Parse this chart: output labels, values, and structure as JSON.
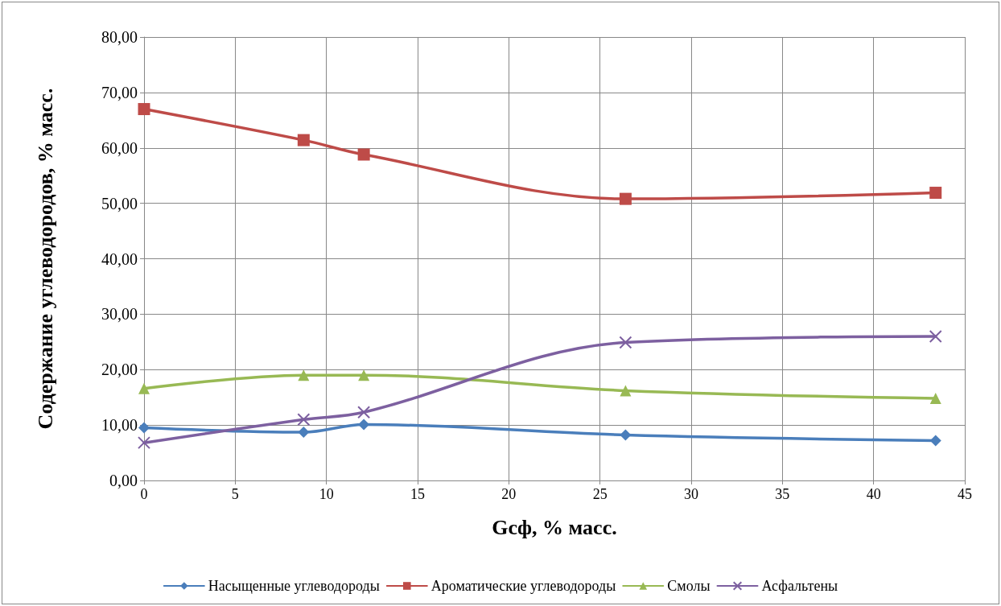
{
  "chart_data": {
    "type": "line",
    "xlabel": "Gcф, % масс.",
    "ylabel": "Содержание углеводородов, % масс.",
    "x": [
      0,
      8.75,
      12.05,
      26.4,
      43.4
    ],
    "series": [
      {
        "name": "Насыщенные углеводороды",
        "color": "#4a7ebb",
        "marker": "diamond",
        "values": [
          9.5,
          8.7,
          10.1,
          8.2,
          7.2
        ]
      },
      {
        "name": "Ароматические углеводороды",
        "color": "#be4b48",
        "marker": "square",
        "values": [
          67.0,
          61.4,
          58.8,
          50.8,
          51.9
        ]
      },
      {
        "name": "Смолы",
        "color": "#98b954",
        "marker": "triangle",
        "values": [
          16.6,
          19.0,
          19.0,
          16.2,
          14.8
        ]
      },
      {
        "name": "Асфальтены",
        "color": "#7d60a0",
        "marker": "cross",
        "values": [
          6.8,
          11.0,
          12.3,
          24.9,
          26.0
        ]
      }
    ],
    "xlim": [
      0,
      45
    ],
    "xticks": [
      0,
      5,
      10,
      15,
      20,
      25,
      30,
      35,
      40,
      45
    ],
    "ylim": [
      0,
      80
    ],
    "yticks": [
      {
        "value": 0,
        "label": "0,00"
      },
      {
        "value": 10,
        "label": "10,00"
      },
      {
        "value": 20,
        "label": "20,00"
      },
      {
        "value": 30,
        "label": "30,00"
      },
      {
        "value": 40,
        "label": "40,00"
      },
      {
        "value": 50,
        "label": "50,00"
      },
      {
        "value": 60,
        "label": "60,00"
      },
      {
        "value": 70,
        "label": "70,00"
      },
      {
        "value": 80,
        "label": "80,00"
      }
    ],
    "grid": true,
    "legend": "bottom",
    "line_style": "solid"
  }
}
